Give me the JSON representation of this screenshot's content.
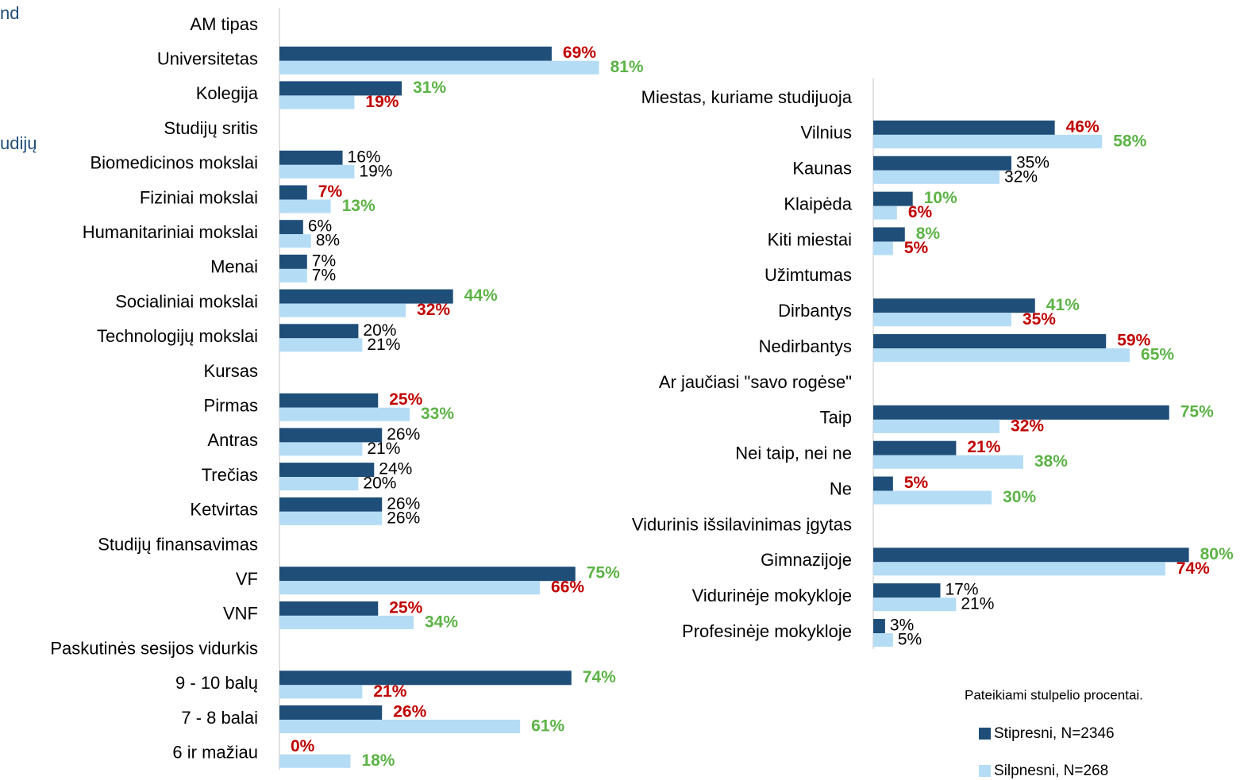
{
  "chart_data": [
    {
      "type": "bar",
      "orientation": "horizontal",
      "xlim": [
        0,
        100
      ],
      "categories": [
        "AM tipas",
        "Universitetas",
        "Kolegija",
        "Studijų sritis",
        "Biomedicinos mokslai",
        "Fiziniai mokslai",
        "Humanitariniai mokslai",
        "Menai",
        "Socialiniai mokslai",
        "Technologijų mokslai",
        "Kursas",
        "Pirmas",
        "Antras",
        "Trečias",
        "Ketvirtas",
        "Studijų finansavimas",
        "VF",
        "VNF",
        "Paskutinės sesijos vidurkis",
        "9 - 10 balų",
        "7 - 8 balai",
        "6 ir mažiau"
      ],
      "series": [
        {
          "name": "Stipresni, N=2346",
          "color": "#1f4e79",
          "values": [
            null,
            69,
            31,
            null,
            16,
            7,
            6,
            7,
            44,
            20,
            null,
            25,
            26,
            24,
            26,
            null,
            75,
            25,
            null,
            74,
            26,
            0
          ],
          "value_labels": [
            null,
            "69%",
            "31%",
            null,
            "16%",
            "7%",
            "6%",
            "7%",
            "44%",
            "20%",
            null,
            "25%",
            "26%",
            "24%",
            "26%",
            null,
            "75%",
            "25%",
            null,
            "74%",
            "26%",
            "0%"
          ],
          "label_colors": [
            null,
            "#c00000",
            "#5cb346",
            null,
            "#000000",
            "#c00000",
            "#000000",
            "#000000",
            "#5cb346",
            "#000000",
            null,
            "#c00000",
            "#000000",
            "#000000",
            "#000000",
            null,
            "#5cb346",
            "#c00000",
            null,
            "#5cb346",
            "#c00000",
            "#c00000"
          ]
        },
        {
          "name": "Silpnesni, N=268",
          "color": "#b4dcf5",
          "values": [
            null,
            81,
            19,
            null,
            19,
            13,
            8,
            7,
            32,
            21,
            null,
            33,
            21,
            20,
            26,
            null,
            66,
            34,
            null,
            21,
            61,
            18
          ],
          "value_labels": [
            null,
            "81%",
            "19%",
            null,
            "19%",
            "13%",
            "8%",
            "7%",
            "32%",
            "21%",
            null,
            "33%",
            "21%",
            "20%",
            "26%",
            null,
            "66%",
            "34%",
            null,
            "21%",
            "61%",
            "18%"
          ],
          "label_colors": [
            null,
            "#5cb346",
            "#c00000",
            null,
            "#000000",
            "#5cb346",
            "#000000",
            "#000000",
            "#c00000",
            "#000000",
            null,
            "#5cb346",
            "#000000",
            "#000000",
            "#000000",
            null,
            "#c00000",
            "#5cb346",
            null,
            "#c00000",
            "#5cb346",
            "#5cb346"
          ]
        }
      ]
    },
    {
      "type": "bar",
      "orientation": "horizontal",
      "xlim": [
        0,
        100
      ],
      "categories": [
        "Miestas, kuriame studijuoja",
        "Vilnius",
        "Kaunas",
        "Klaipėda",
        "Kiti miestai",
        "Užimtumas",
        "Dirbantys",
        "Nedirbantys",
        "Ar jaučiasi \"savo rogėse\"",
        "Taip",
        "Nei taip, nei ne",
        "Ne",
        "Vidurinis išsilavinimas įgytas",
        "Gimnazijoje",
        "Vidurinėje mokykloje",
        "Profesinėje mokykloje"
      ],
      "series": [
        {
          "color": "#1f4e79",
          "values": [
            null,
            46,
            35,
            10,
            8,
            null,
            41,
            59,
            null,
            75,
            21,
            5,
            null,
            80,
            17,
            3
          ],
          "value_labels": [
            null,
            "46%",
            "35%",
            "10%",
            "8%",
            null,
            "41%",
            "59%",
            null,
            "75%",
            "21%",
            "5%",
            null,
            "80%",
            "17%",
            "3%"
          ],
          "label_colors": [
            null,
            "#c00000",
            "#000000",
            "#5cb346",
            "#5cb346",
            null,
            "#5cb346",
            "#c00000",
            null,
            "#5cb346",
            "#c00000",
            "#c00000",
            null,
            "#5cb346",
            "#000000",
            "#000000"
          ]
        },
        {
          "color": "#b4dcf5",
          "values": [
            null,
            58,
            32,
            6,
            5,
            null,
            35,
            65,
            null,
            32,
            38,
            30,
            null,
            74,
            21,
            5
          ],
          "value_labels": [
            null,
            "58%",
            "32%",
            "6%",
            "5%",
            null,
            "35%",
            "65%",
            null,
            "32%",
            "38%",
            "30%",
            null,
            "74%",
            "21%",
            "5%"
          ],
          "label_colors": [
            null,
            "#5cb346",
            "#000000",
            "#c00000",
            "#c00000",
            null,
            "#c00000",
            "#5cb346",
            null,
            "#c00000",
            "#5cb346",
            "#5cb346",
            null,
            "#c00000",
            "#000000",
            "#000000"
          ]
        }
      ]
    }
  ],
  "note": "Pateikiami stulpelio procentai.",
  "cropped_text": [
    "nd",
    "udijų"
  ]
}
